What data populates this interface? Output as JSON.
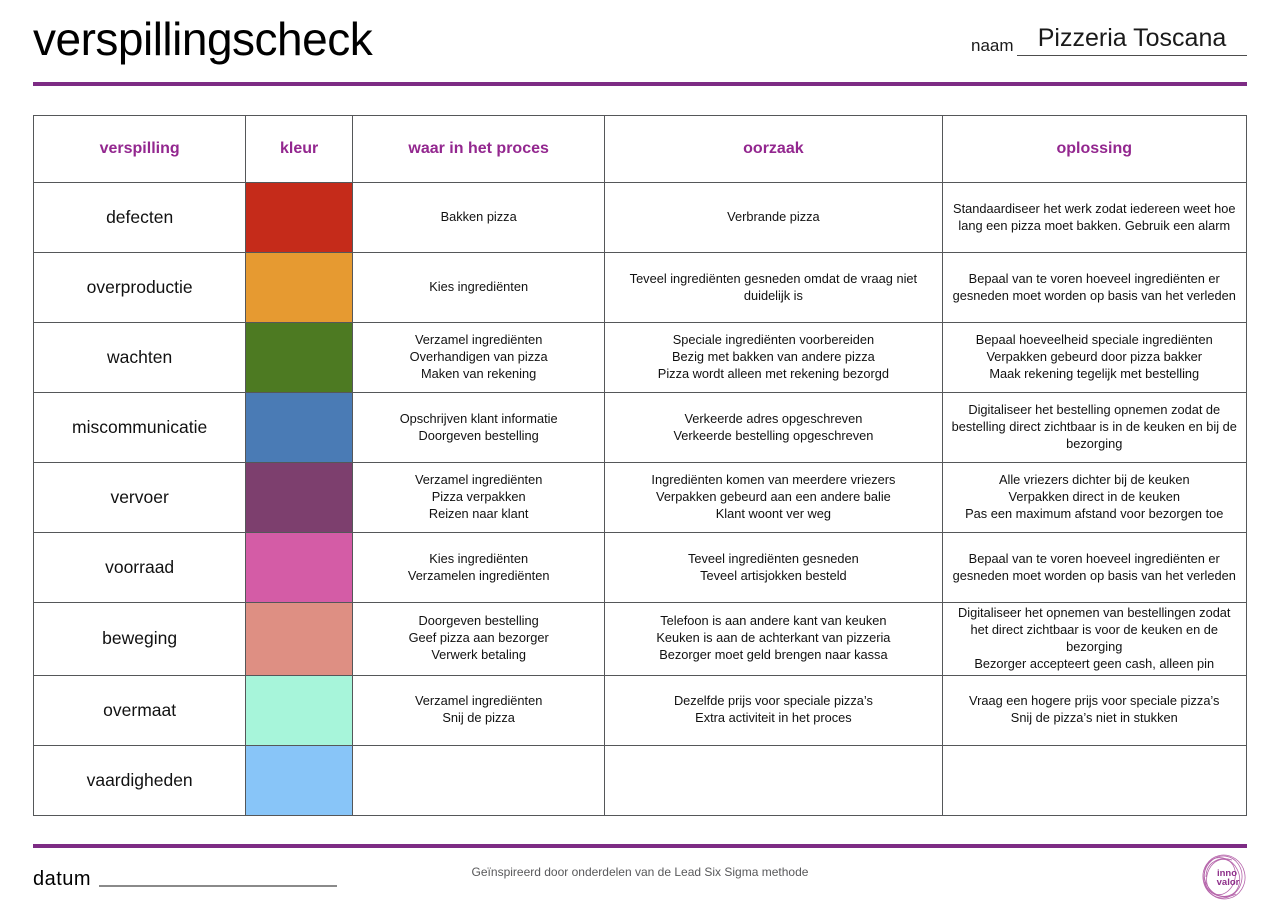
{
  "header": {
    "title": "verspillingscheck",
    "name_label": "naam",
    "name_value": "Pizzeria Toscana"
  },
  "table": {
    "columns": [
      "verspilling",
      "kleur",
      "waar in het proces",
      "oorzaak",
      "oplossing"
    ],
    "rows": [
      {
        "label": "defecten",
        "color": "#c52b1a",
        "process": [
          "Bakken pizza"
        ],
        "cause": [
          "Verbrande pizza"
        ],
        "solution": [
          "Standaardiseer het werk zodat iedereen weet hoe lang een pizza moet bakken. Gebruik een alarm"
        ]
      },
      {
        "label": "overproductie",
        "color": "#e69a31",
        "process": [
          "Kies ingrediënten"
        ],
        "cause": [
          "Teveel ingrediënten gesneden omdat de vraag niet duidelijk is"
        ],
        "solution": [
          "Bepaal van te voren hoeveel ingrediënten er gesneden moet worden op basis van het verleden"
        ]
      },
      {
        "label": "wachten",
        "color": "#4d7a22",
        "process": [
          "Verzamel ingrediënten",
          "Overhandigen van pizza",
          "Maken van rekening"
        ],
        "cause": [
          "Speciale ingrediënten voorbereiden",
          "Bezig met bakken van andere pizza",
          "Pizza wordt alleen met rekening bezorgd"
        ],
        "solution": [
          "Bepaal hoeveelheid speciale ingrediënten",
          "Verpakken gebeurd door pizza bakker",
          "Maak rekening tegelijk met bestelling"
        ]
      },
      {
        "label": "miscommunicatie",
        "color": "#4a7bb5",
        "process": [
          "Opschrijven klant informatie",
          "Doorgeven bestelling"
        ],
        "cause": [
          "Verkeerde adres opgeschreven",
          "Verkeerde bestelling opgeschreven"
        ],
        "solution": [
          "Digitaliseer het bestelling opnemen zodat de bestelling direct zichtbaar is in de keuken en bij de bezorging"
        ]
      },
      {
        "label": "vervoer",
        "color": "#7d3f6e",
        "process": [
          "Verzamel ingrediënten",
          "Pizza verpakken",
          "Reizen naar klant"
        ],
        "cause": [
          "Ingrediënten komen van meerdere vriezers",
          "Verpakken gebeurd aan een andere balie",
          "Klant woont ver weg"
        ],
        "solution": [
          "Alle vriezers dichter bij de keuken",
          "Verpakken direct in de keuken",
          "Pas een maximum afstand voor bezorgen toe"
        ]
      },
      {
        "label": "voorraad",
        "color": "#d45ca6",
        "process": [
          "Kies ingrediënten",
          "Verzamelen ingrediënten"
        ],
        "cause": [
          "Teveel ingrediënten gesneden",
          "Teveel artisjokken besteld"
        ],
        "solution": [
          "Bepaal van te voren hoeveel ingrediënten er gesneden moet worden op basis van het verleden"
        ]
      },
      {
        "label": "beweging",
        "color": "#de8f83",
        "process": [
          "Doorgeven bestelling",
          "Geef pizza aan bezorger",
          "Verwerk betaling"
        ],
        "cause": [
          "Telefoon is aan andere kant van keuken",
          "Keuken is aan de achterkant van pizzeria",
          "Bezorger moet geld brengen naar kassa"
        ],
        "solution": [
          "Digitaliseer het opnemen van bestellingen zodat het direct zichtbaar is voor de keuken en de bezorging",
          "Bezorger accepteert geen cash, alleen pin"
        ]
      },
      {
        "label": "overmaat",
        "color": "#a7f5da",
        "process": [
          "Verzamel ingrediënten",
          "Snij de pizza"
        ],
        "cause": [
          "Dezelfde prijs voor speciale pizza’s",
          "Extra activiteit in het proces"
        ],
        "solution": [
          "Vraag een hogere prijs voor speciale pizza’s",
          "Snij de pizza’s niet in stukken"
        ]
      },
      {
        "label": "vaardigheden",
        "color": "#88c5f8",
        "process": [],
        "cause": [],
        "solution": []
      }
    ]
  },
  "footer": {
    "date_label": "datum",
    "credit": "Geïnspireerd door onderdelen van de Lead Six Sigma methode",
    "logo_line1": "inno",
    "logo_line2": "valor"
  },
  "colors": {
    "accent_rule": "#7d2b84",
    "header_text": "#93278f",
    "table_border": "#555759"
  }
}
